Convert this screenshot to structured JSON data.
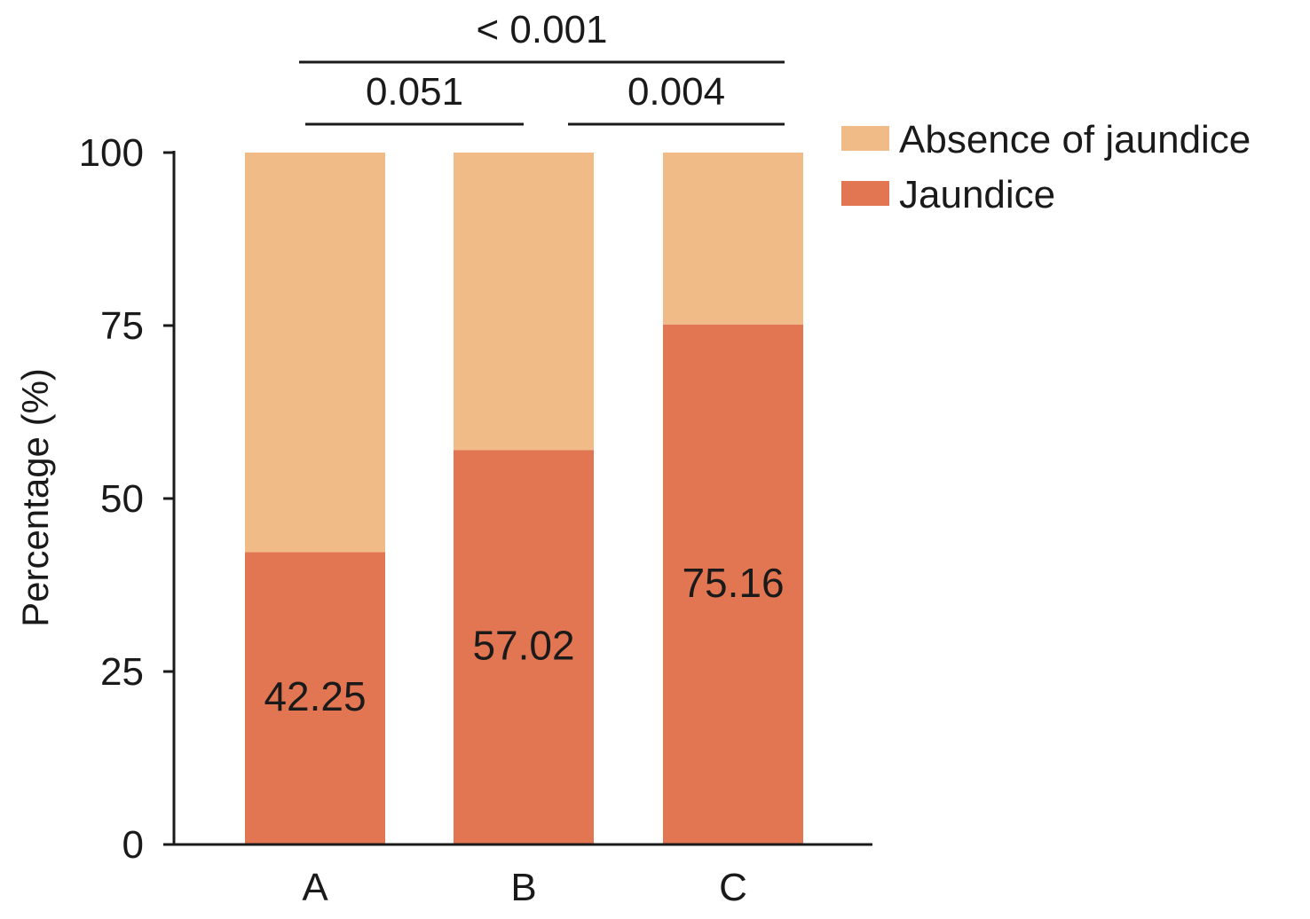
{
  "chart_data": {
    "type": "bar",
    "stacked": true,
    "categories": [
      "A",
      "B",
      "C"
    ],
    "series": [
      {
        "name": "Jaundice",
        "values": [
          42.25,
          57.02,
          75.16
        ],
        "color": "#e27652"
      },
      {
        "name": "Absence of jaundice",
        "values": [
          57.75,
          42.98,
          24.84
        ],
        "color": "#f0bb86"
      }
    ],
    "data_labels": [
      "42.25",
      "57.02",
      "75.16"
    ],
    "xlabel": "",
    "ylabel": "Percentage (%)",
    "ylim": [
      0,
      100
    ],
    "yticks": [
      0,
      25,
      50,
      75,
      100
    ],
    "grid": false,
    "legend": {
      "position": "top-right",
      "entries": [
        {
          "label": "Absence of jaundice",
          "color": "#f0bb86"
        },
        {
          "label": "Jaundice",
          "color": "#e27652"
        }
      ]
    },
    "significance": [
      {
        "from": "A",
        "to": "B",
        "label": "0.051"
      },
      {
        "from": "B",
        "to": "C",
        "label": "0.004"
      },
      {
        "from": "A",
        "to": "C",
        "label": "< 0.001"
      }
    ]
  }
}
